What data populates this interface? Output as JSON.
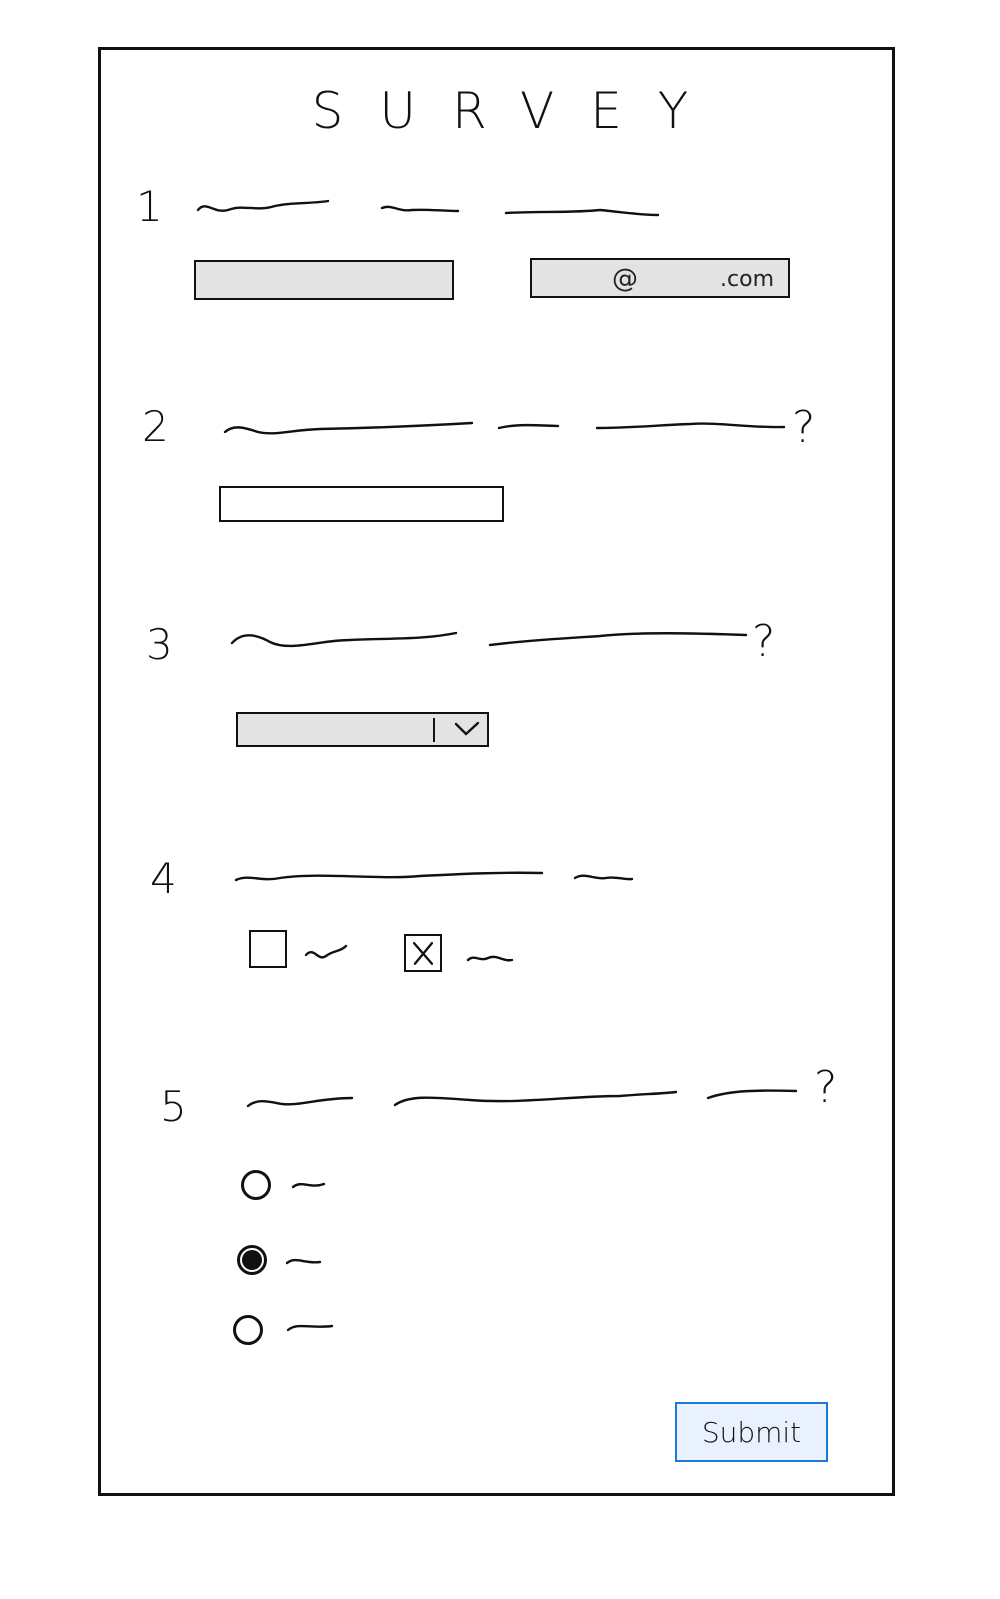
{
  "survey": {
    "title": "SURVEY",
    "questions": [
      {
        "number": "1",
        "fields": [
          {
            "type": "text-input",
            "placeholder": ""
          },
          {
            "type": "email-input",
            "placeholder_at": "@",
            "placeholder_domain": ".com"
          }
        ]
      },
      {
        "number": "2",
        "question_mark": "?",
        "fields": [
          {
            "type": "text-input"
          }
        ]
      },
      {
        "number": "3",
        "question_mark": "?",
        "fields": [
          {
            "type": "dropdown",
            "icon": "chevron-down-icon"
          }
        ]
      },
      {
        "number": "4",
        "fields": [
          {
            "type": "checkbox",
            "checked": false
          },
          {
            "type": "checkbox",
            "checked": true
          }
        ]
      },
      {
        "number": "5",
        "question_mark": "?",
        "fields": [
          {
            "type": "radio",
            "selected": false
          },
          {
            "type": "radio",
            "selected": true
          },
          {
            "type": "radio",
            "selected": false
          }
        ]
      }
    ],
    "submit_label": "Submit"
  },
  "colors": {
    "ink": "#111111",
    "field_gray": "#e3e3e3",
    "submit_border": "#1a7bd6",
    "submit_fill": "#e8f1fd"
  }
}
